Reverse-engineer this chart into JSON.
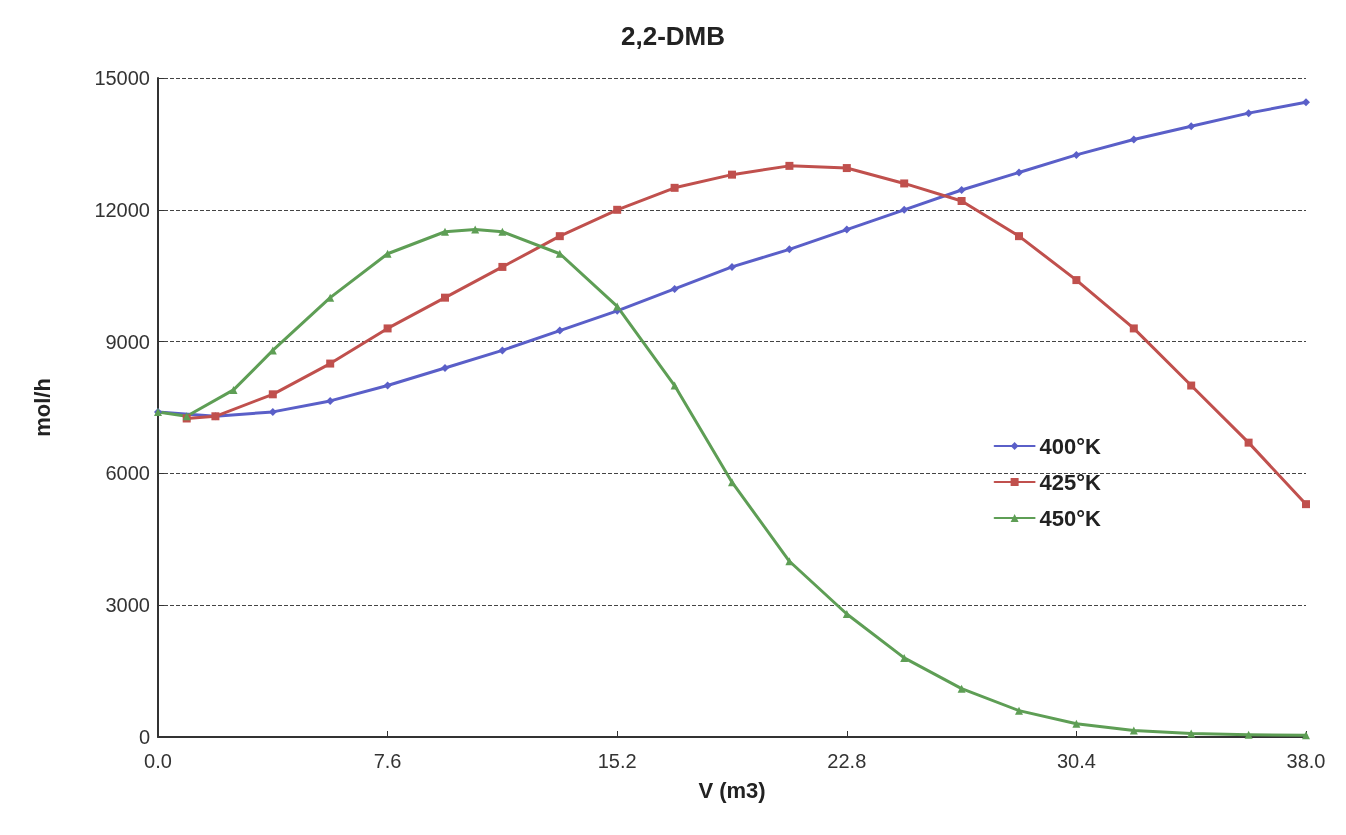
{
  "chart_data": {
    "type": "line",
    "title": "2,2-DMB",
    "xlabel": "V (m3)",
    "ylabel": "mol/h",
    "xlim": [
      0,
      38
    ],
    "xticks": [
      {
        "value": 0,
        "label": "0.0"
      },
      7.6,
      15.2,
      22.8,
      30.4,
      {
        "value": 38,
        "label": "38.0"
      }
    ],
    "ylim": [
      0,
      15000
    ],
    "yticks": [
      0,
      3000,
      6000,
      9000,
      12000,
      15000
    ],
    "grid": "y",
    "legend": "right",
    "line_style": "solid",
    "series": [
      {
        "name": "400°K",
        "color": "#5a5fc8",
        "marker": "diamond",
        "x": [
          0,
          1.9,
          3.8,
          5.7,
          7.6,
          9.5,
          11.4,
          13.3,
          15.2,
          17.1,
          19,
          20.9,
          22.8,
          24.7,
          26.6,
          28.5,
          30.4,
          32.3,
          34.2,
          36.1,
          38
        ],
        "values": [
          7400,
          7300,
          7400,
          7650,
          8000,
          8400,
          8800,
          9250,
          9700,
          10200,
          10700,
          11100,
          11550,
          12000,
          12450,
          12850,
          13250,
          13600,
          13900,
          14200,
          14450
        ]
      },
      {
        "name": "425°K",
        "color": "#c0504d",
        "marker": "square",
        "x": [
          0.95,
          1.9,
          3.8,
          5.7,
          7.6,
          9.5,
          11.4,
          13.3,
          15.2,
          17.1,
          19,
          20.9,
          22.8,
          24.7,
          26.6,
          28.5,
          30.4,
          32.3,
          34.2,
          36.1,
          38
        ],
        "values": [
          7250,
          7300,
          7800,
          8500,
          9300,
          10000,
          10700,
          11400,
          12000,
          12500,
          12800,
          13000,
          12950,
          12600,
          12200,
          11400,
          10400,
          9300,
          8000,
          6700,
          5300
        ]
      },
      {
        "name": "450°K",
        "color": "#5e9e55",
        "marker": "triangle",
        "x": [
          0,
          0.95,
          2.5,
          3.8,
          5.7,
          7.6,
          9.5,
          10.5,
          11.4,
          13.3,
          15.2,
          17.1,
          19,
          20.9,
          22.8,
          24.7,
          26.6,
          28.5,
          30.4,
          32.3,
          34.2,
          36.1,
          38
        ],
        "values": [
          7400,
          7300,
          7900,
          8800,
          10000,
          11000,
          11500,
          11550,
          11500,
          11000,
          9800,
          8000,
          5800,
          4000,
          2800,
          1800,
          1100,
          600,
          300,
          150,
          80,
          50,
          40
        ]
      }
    ]
  }
}
